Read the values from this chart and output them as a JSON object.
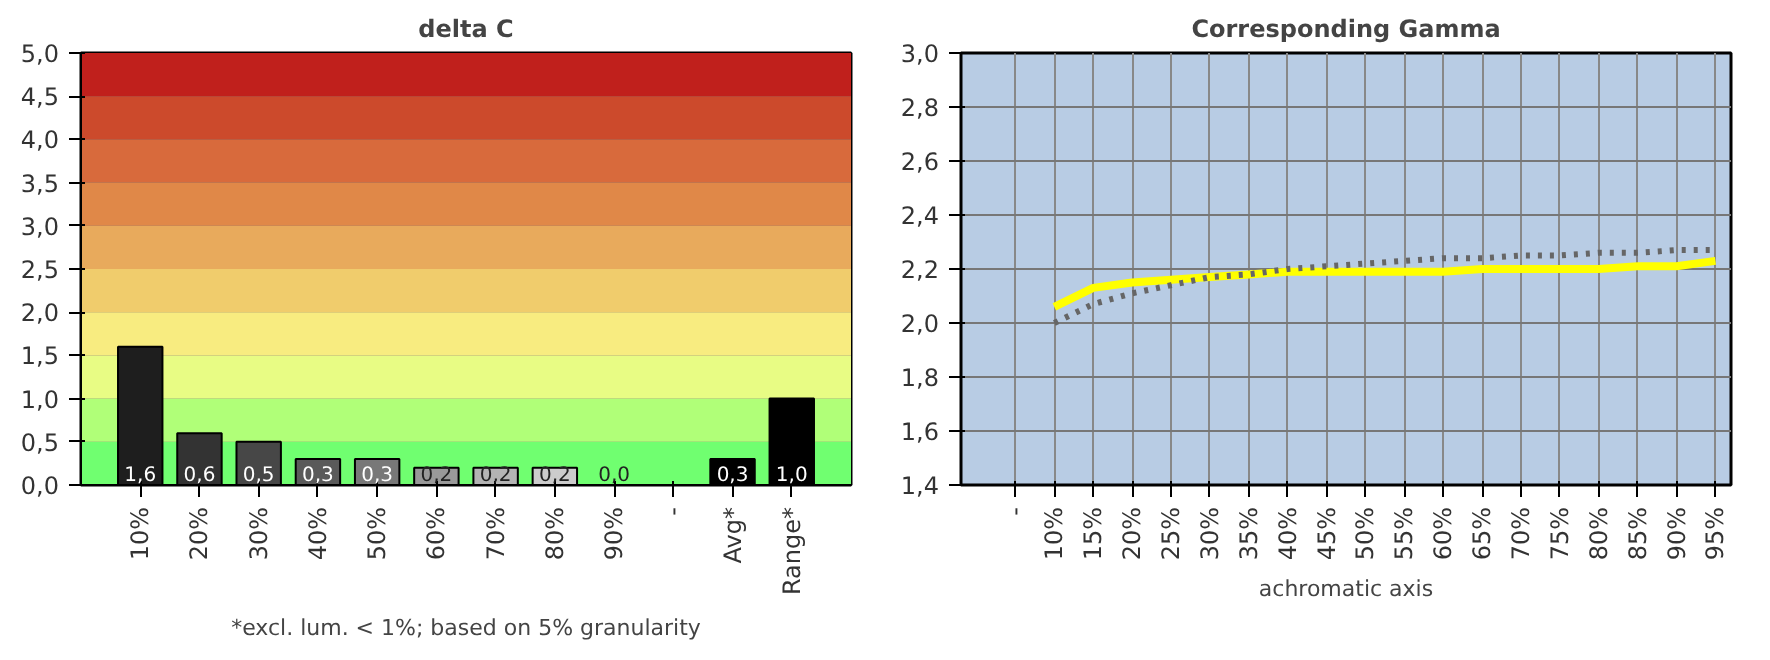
{
  "chart_data": [
    {
      "type": "bar",
      "title": "delta C",
      "categories": [
        "10%",
        "20%",
        "30%",
        "40%",
        "50%",
        "60%",
        "70%",
        "80%",
        "90%",
        "-",
        "Avg*",
        "Range*"
      ],
      "values": [
        1.6,
        0.6,
        0.5,
        0.3,
        0.3,
        0.2,
        0.2,
        0.2,
        0.0,
        null,
        0.3,
        1.0
      ],
      "value_labels": [
        "1,6",
        "0,6",
        "0,5",
        "0,3",
        "0,3",
        "0,2",
        "0,2",
        "0,2",
        "0,0",
        null,
        "0,3",
        "1,0"
      ],
      "colors": [
        "#1e1e1e",
        "#333333",
        "#474747",
        "#5a5a5a",
        "#787878",
        "#999999",
        "#b4b4b4",
        "#cccccc",
        "#dddddd",
        "#dddddd",
        "#000000",
        "#000000"
      ],
      "ylim": [
        0,
        5
      ],
      "yticks": [
        {
          "value": 0,
          "label": "0,0"
        },
        {
          "value": 0.5,
          "label": "0,5"
        },
        {
          "value": 1,
          "label": "1,0"
        },
        {
          "value": 1.5,
          "label": "1,5"
        },
        {
          "value": 2,
          "label": "2,0"
        },
        {
          "value": 2.5,
          "label": "2,5"
        },
        {
          "value": 3,
          "label": "3,0"
        },
        {
          "value": 3.5,
          "label": "3,5"
        },
        {
          "value": 4,
          "label": "4,0"
        },
        {
          "value": 4.5,
          "label": "4,5"
        },
        {
          "value": 5,
          "label": "5,0"
        }
      ],
      "bands": [
        {
          "axis": "y",
          "from": 0,
          "to": 0.5,
          "color": "#70ff70"
        },
        {
          "axis": "y",
          "from": 0.5,
          "to": 1,
          "color": "#b0ff78"
        },
        {
          "axis": "y",
          "from": 1,
          "to": 1.5,
          "color": "#e8fc84"
        },
        {
          "axis": "y",
          "from": 1.5,
          "to": 2,
          "color": "#f8ec80"
        },
        {
          "axis": "y",
          "from": 2,
          "to": 2.5,
          "color": "#f0cc6c"
        },
        {
          "axis": "y",
          "from": 2.5,
          "to": 3,
          "color": "#e8aa5c"
        },
        {
          "axis": "y",
          "from": 3,
          "to": 3.5,
          "color": "#e08848"
        },
        {
          "axis": "y",
          "from": 3.5,
          "to": 4,
          "color": "#d86a3c"
        },
        {
          "axis": "y",
          "from": 4,
          "to": 4.5,
          "color": "#cc4a2c"
        },
        {
          "axis": "y",
          "from": 4.5,
          "to": 5,
          "color": "#c0201c"
        }
      ],
      "annotations": [
        "*excl. lum. < 1%; based on 5% granularity"
      ],
      "grid": "y"
    },
    {
      "type": "line",
      "title": "Corresponding Gamma",
      "xlabel": "achromatic axis",
      "categories": [
        "-",
        "10%",
        "15%",
        "20%",
        "25%",
        "30%",
        "35%",
        "40%",
        "45%",
        "50%",
        "55%",
        "60%",
        "65%",
        "70%",
        "75%",
        "80%",
        "85%",
        "90%",
        "95%"
      ],
      "series": [
        {
          "color": "#ffff00",
          "line_style": "solid",
          "values": [
            null,
            2.06,
            2.13,
            2.15,
            2.16,
            2.17,
            2.18,
            2.19,
            2.19,
            2.19,
            2.19,
            2.19,
            2.2,
            2.2,
            2.2,
            2.2,
            2.21,
            2.21,
            2.23
          ]
        },
        {
          "color": "#666666",
          "line_style": "dotted",
          "values": [
            null,
            2.0,
            2.07,
            2.11,
            2.14,
            2.17,
            2.18,
            2.2,
            2.21,
            2.22,
            2.23,
            2.24,
            2.24,
            2.25,
            2.25,
            2.26,
            2.26,
            2.27,
            2.27
          ]
        }
      ],
      "ylim": [
        1.4,
        3.0
      ],
      "yticks": [
        {
          "value": 1.4,
          "label": "1,4"
        },
        {
          "value": 1.6,
          "label": "1,6"
        },
        {
          "value": 1.8,
          "label": "1,8"
        },
        {
          "value": 2.0,
          "label": "2,0"
        },
        {
          "value": 2.2,
          "label": "2,2"
        },
        {
          "value": 2.4,
          "label": "2,4"
        },
        {
          "value": 2.6,
          "label": "2,6"
        },
        {
          "value": 2.8,
          "label": "2,8"
        },
        {
          "value": 3.0,
          "label": "3,0"
        }
      ],
      "grid": true
    }
  ]
}
